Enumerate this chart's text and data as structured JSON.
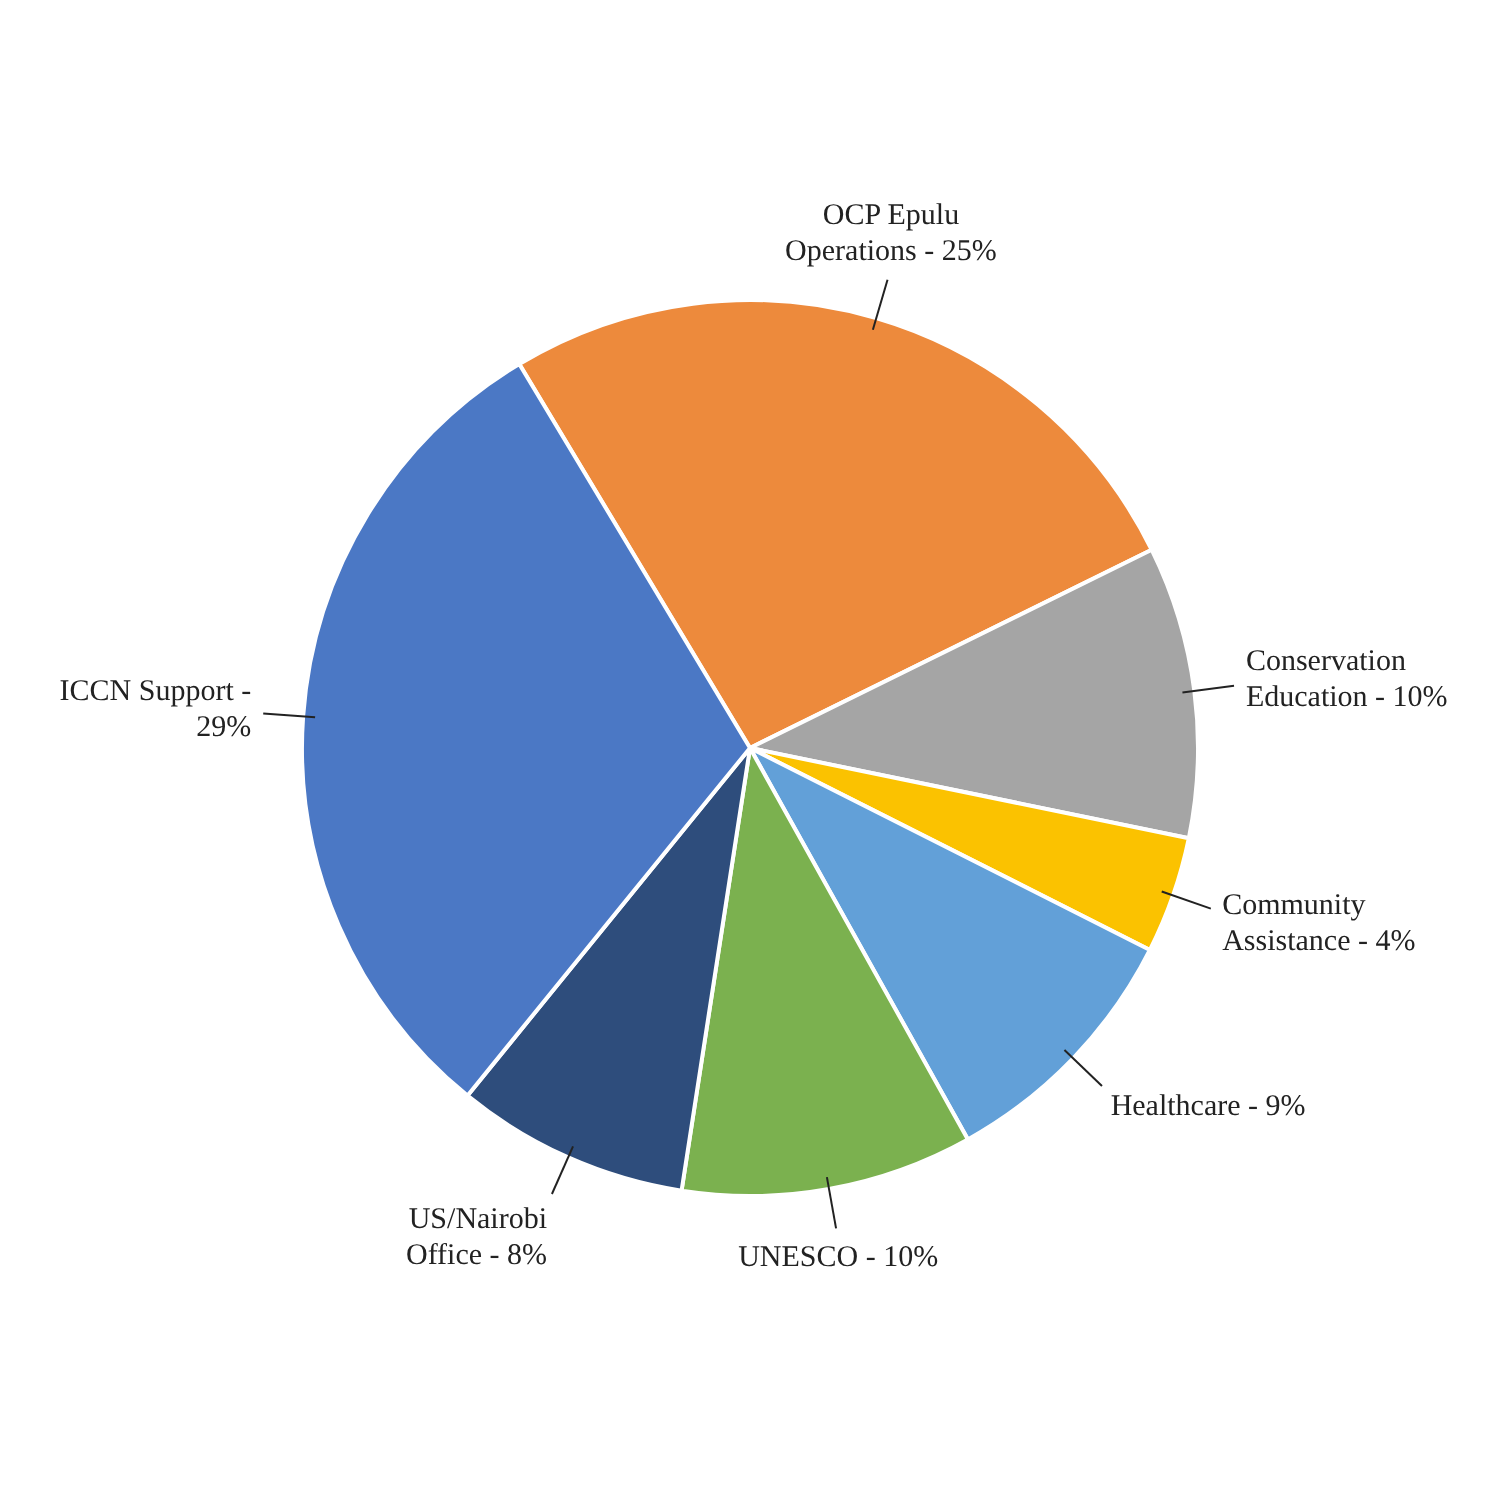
{
  "chart_data": {
    "type": "pie",
    "categories": [
      "OCP Epulu Operations -",
      "Conservation Education -",
      "Community Assistance -",
      "Healthcare -",
      "UNESCO -",
      "US/Nairobi Office -",
      "ICCN Support -"
    ],
    "values": [
      25,
      10,
      4,
      9,
      10,
      8,
      29
    ],
    "value_labels": [
      "25%",
      "10%",
      "4%",
      "9%",
      "10%",
      "8%",
      "29%"
    ],
    "colors": [
      "#ed8a3c",
      "#a5a5a5",
      "#fbc200",
      "#62a0d8",
      "#7bb14f",
      "#2e4d7c",
      "#4b78c5"
    ],
    "legend": false
  }
}
